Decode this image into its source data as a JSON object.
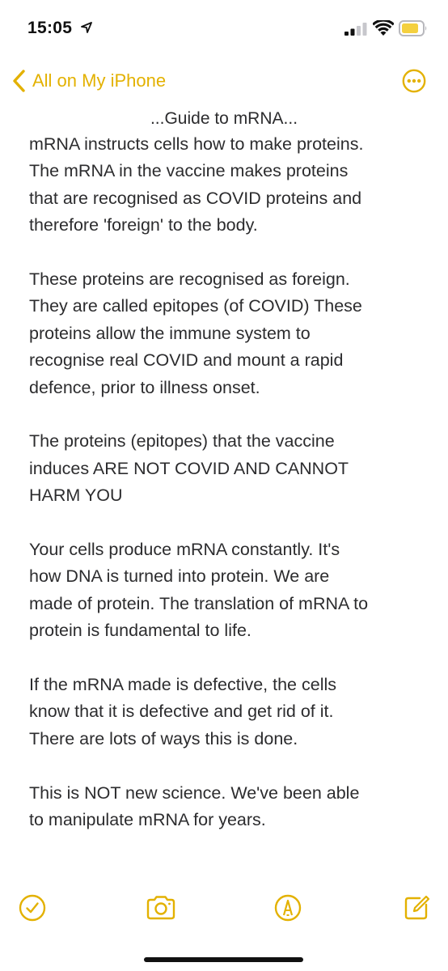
{
  "status_bar": {
    "time": "15:05"
  },
  "nav": {
    "back_label": "All on My iPhone"
  },
  "note": {
    "title": "...Guide to mRNA...",
    "paragraphs": [
      "mRNA instructs cells how to make proteins.\nThe mRNA in the vaccine makes proteins\nthat are recognised as COVID proteins and\ntherefore 'foreign' to the body.",
      "These proteins are recognised as foreign.\nThey are called epitopes (of COVID) These\nproteins allow the immune system to\nrecognise real COVID and mount a rapid\ndefence, prior to illness onset.",
      "The proteins (epitopes) that the vaccine\ninduces ARE NOT COVID AND CANNOT\nHARM YOU",
      "Your cells produce mRNA constantly. It's\nhow DNA is turned into protein. We are\nmade of protein. The translation of mRNA to\nprotein is fundamental to life.",
      "If the mRNA made is defective, the cells\nknow that it is defective and get rid of it.\nThere are lots of ways this is done.",
      "This is NOT new science. We've been able\nto manipulate mRNA for years."
    ]
  },
  "colors": {
    "accent": "#e3b100",
    "text": "#2c2c2e"
  },
  "icons": {
    "back": "chevron-left-icon",
    "more": "ellipsis-circle-icon",
    "checklist": "checkmark-circle-icon",
    "camera": "camera-icon",
    "markup": "pen-circle-icon",
    "compose": "compose-icon"
  }
}
